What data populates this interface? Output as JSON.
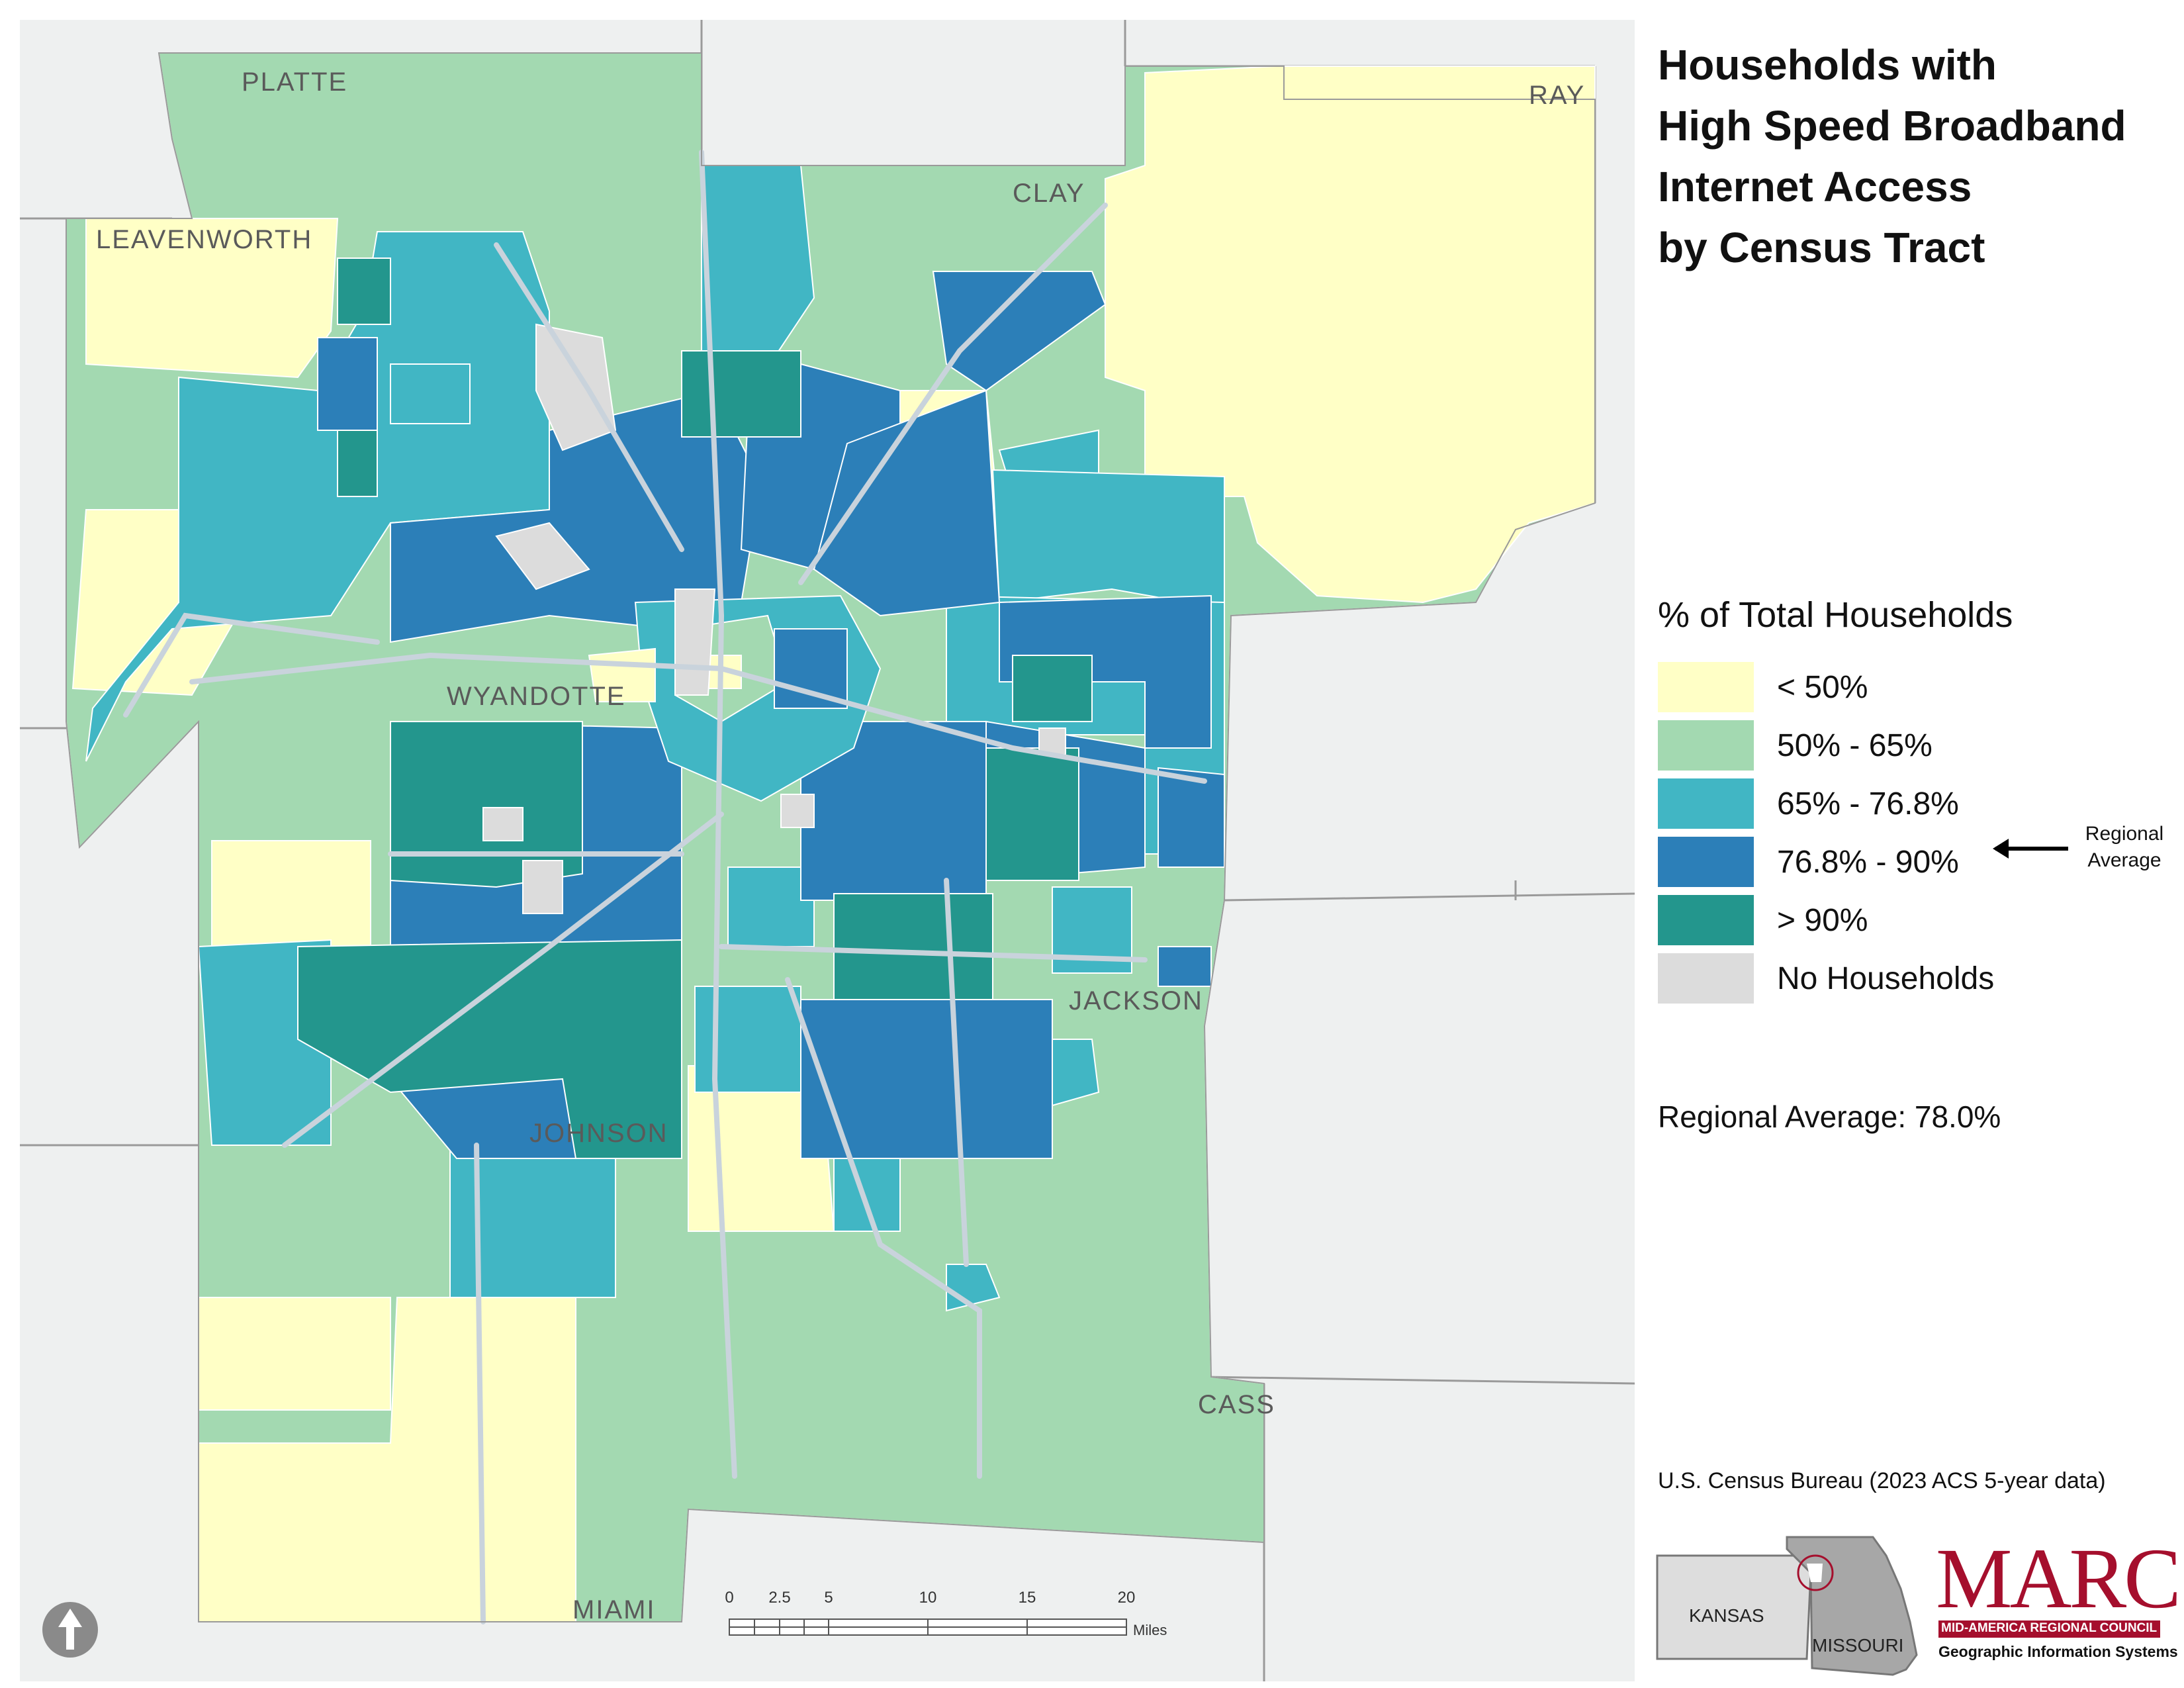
{
  "title": {
    "line1": "Households with",
    "line2": "High Speed Broadband",
    "line3": "Internet Access",
    "line4": "by Census Tract"
  },
  "counties": {
    "platte": "PLATTE",
    "clay": "CLAY",
    "ray": "RAY",
    "leavenworth": "LEAVENWORTH",
    "wyandotte": "WYANDOTTE",
    "jackson": "JACKSON",
    "johnson": "JOHNSON",
    "cass": "CASS",
    "miami": "MIAMI"
  },
  "legend": {
    "heading": "% of Total Households",
    "items": [
      {
        "label": "< 50%",
        "color": "#ffffc6"
      },
      {
        "label": "50% - 65%",
        "color": "#a3d9b1"
      },
      {
        "label": "65% - 76.8%",
        "color": "#41b6c4"
      },
      {
        "label": "76.8% - 90%",
        "color": "#2c7fb8"
      },
      {
        "label": "> 90%",
        "color": "#23968d"
      },
      {
        "label": "No Households",
        "color": "#dcdcdc"
      }
    ],
    "regional_marker_line1": "Regional",
    "regional_marker_line2": "Average"
  },
  "regional_average": "Regional Average: 78.0%",
  "source": "U.S. Census Bureau (2023 ACS 5-year data)",
  "inset": {
    "kansas": "KANSAS",
    "missouri": "MISSOURI"
  },
  "logo": {
    "name": "MARC",
    "subtitle1": "MID-AMERICA REGIONAL COUNCIL",
    "subtitle2": "Geographic Information Systems"
  },
  "scale": {
    "ticks": [
      "0",
      "2.5",
      "5",
      "10",
      "15",
      "20"
    ],
    "units": "Miles"
  },
  "north_arrow_icon": "north-arrow-icon",
  "colors": {
    "background_land": "#eef0f0",
    "county_line": "#9a9a9a",
    "road": "#c9d3dc"
  }
}
